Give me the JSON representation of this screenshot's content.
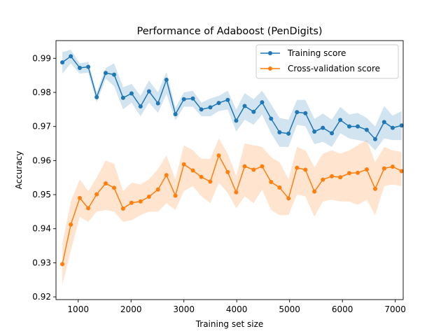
{
  "chart_data": {
    "type": "line",
    "title": "Performance of Adaboost (PenDigits)",
    "xlabel": "Training set size",
    "ylabel": "Accuracy",
    "xlim": [
      580,
      7150
    ],
    "ylim": [
      0.9192,
      0.9952
    ],
    "xticks": [
      1000,
      2000,
      3000,
      4000,
      5000,
      6000,
      7000
    ],
    "yticks": [
      0.92,
      0.93,
      0.94,
      0.95,
      0.96,
      0.97,
      0.98,
      0.99
    ],
    "grid": false,
    "legend_position": "top-right",
    "x": [
      700,
      860,
      1030,
      1190,
      1350,
      1520,
      1680,
      1850,
      2010,
      2180,
      2340,
      2510,
      2670,
      2840,
      3000,
      3170,
      3330,
      3500,
      3660,
      3830,
      3990,
      4150,
      4320,
      4480,
      4650,
      4810,
      4980,
      5140,
      5300,
      5470,
      5630,
      5800,
      5960,
      6130,
      6290,
      6460,
      6620,
      6790,
      6950,
      7120
    ],
    "series": [
      {
        "name": "Training score",
        "color": "#1f77b4",
        "values": [
          0.9888,
          0.9906,
          0.9872,
          0.9875,
          0.9786,
          0.9857,
          0.9852,
          0.9784,
          0.9797,
          0.9759,
          0.9803,
          0.9768,
          0.9837,
          0.9736,
          0.978,
          0.9782,
          0.975,
          0.9756,
          0.9769,
          0.9778,
          0.9717,
          0.976,
          0.9743,
          0.9771,
          0.9723,
          0.9683,
          0.9679,
          0.9742,
          0.9739,
          0.9685,
          0.9696,
          0.968,
          0.9719,
          0.97,
          0.97,
          0.969,
          0.9663,
          0.9713,
          0.9696,
          0.9703
        ],
        "band_low": [
          0.9855,
          0.9885,
          0.9855,
          0.9858,
          0.977,
          0.984,
          0.9818,
          0.975,
          0.977,
          0.973,
          0.977,
          0.974,
          0.9795,
          0.9718,
          0.9758,
          0.9758,
          0.973,
          0.973,
          0.9745,
          0.975,
          0.9685,
          0.972,
          0.9705,
          0.9735,
          0.968,
          0.964,
          0.964,
          0.9705,
          0.97,
          0.9648,
          0.9655,
          0.964,
          0.968,
          0.9665,
          0.966,
          0.9655,
          0.963,
          0.9665,
          0.966,
          0.966
        ],
        "band_high": [
          0.9918,
          0.9925,
          0.9885,
          0.989,
          0.98,
          0.9872,
          0.9885,
          0.9815,
          0.9825,
          0.979,
          0.9835,
          0.98,
          0.986,
          0.9755,
          0.98,
          0.9805,
          0.977,
          0.9782,
          0.979,
          0.9805,
          0.975,
          0.9798,
          0.978,
          0.9805,
          0.9765,
          0.9725,
          0.972,
          0.9778,
          0.9778,
          0.9722,
          0.9738,
          0.972,
          0.9758,
          0.9735,
          0.974,
          0.9725,
          0.97,
          0.976,
          0.9732,
          0.9745
        ]
      },
      {
        "name": "Cross-validation score",
        "color": "#ff7f0e",
        "values": [
          0.9296,
          0.9412,
          0.949,
          0.946,
          0.9501,
          0.9533,
          0.952,
          0.9459,
          0.9476,
          0.948,
          0.9494,
          0.9515,
          0.9557,
          0.9497,
          0.9589,
          0.9571,
          0.9552,
          0.9538,
          0.9615,
          0.9566,
          0.9507,
          0.9583,
          0.9573,
          0.9583,
          0.9537,
          0.9521,
          0.9489,
          0.9579,
          0.9573,
          0.9509,
          0.9544,
          0.9554,
          0.9551,
          0.9563,
          0.9564,
          0.9574,
          0.9517,
          0.9577,
          0.9582,
          0.9569
        ],
        "band_low": [
          0.9235,
          0.9335,
          0.9435,
          0.942,
          0.945,
          0.9455,
          0.945,
          0.942,
          0.9425,
          0.944,
          0.945,
          0.945,
          0.9475,
          0.9455,
          0.951,
          0.9525,
          0.9495,
          0.9475,
          0.9535,
          0.9505,
          0.946,
          0.9495,
          0.9475,
          0.9515,
          0.9455,
          0.944,
          0.944,
          0.95,
          0.9495,
          0.9435,
          0.948,
          0.9485,
          0.948,
          0.948,
          0.947,
          0.9485,
          0.944,
          0.9525,
          0.953,
          0.9525
        ],
        "band_high": [
          0.9355,
          0.948,
          0.9545,
          0.951,
          0.955,
          0.96,
          0.959,
          0.951,
          0.9535,
          0.953,
          0.9545,
          0.9575,
          0.9615,
          0.9545,
          0.9645,
          0.963,
          0.9605,
          0.9605,
          0.9665,
          0.962,
          0.9555,
          0.965,
          0.9645,
          0.964,
          0.961,
          0.9595,
          0.9545,
          0.964,
          0.963,
          0.958,
          0.962,
          0.963,
          0.962,
          0.963,
          0.9645,
          0.966,
          0.9595,
          0.964,
          0.963,
          0.9625
        ]
      }
    ]
  }
}
